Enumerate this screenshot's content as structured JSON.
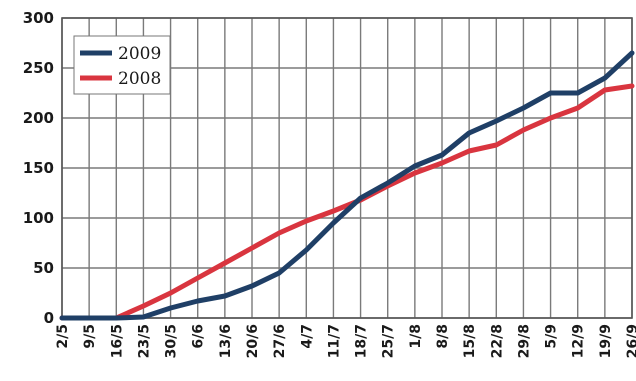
{
  "chart_data": {
    "type": "line",
    "categories": [
      "2/5",
      "9/5",
      "16/5",
      "23/5",
      "30/5",
      "6/6",
      "13/6",
      "20/6",
      "27/6",
      "4/7",
      "11/7",
      "18/7",
      "25/7",
      "1/8",
      "8/8",
      "15/8",
      "22/8",
      "29/8",
      "5/9",
      "12/9",
      "19/9",
      "26/9"
    ],
    "ylim": [
      0,
      300
    ],
    "y_ticks": [
      0,
      50,
      100,
      150,
      200,
      250,
      300
    ],
    "grid": true,
    "legend_position": "top-left",
    "series": [
      {
        "name": "2009",
        "color": "#1f3f66",
        "values": [
          0,
          0,
          0,
          1,
          10,
          17,
          22,
          32,
          45,
          68,
          95,
          120,
          135,
          152,
          163,
          185,
          197,
          210,
          225,
          225,
          240,
          265
        ]
      },
      {
        "name": "2008",
        "color": "#d9353f",
        "values": [
          0,
          0,
          0,
          12,
          25,
          40,
          55,
          70,
          85,
          97,
          107,
          118,
          132,
          145,
          155,
          167,
          173,
          188,
          200,
          210,
          228,
          232
        ]
      }
    ]
  }
}
